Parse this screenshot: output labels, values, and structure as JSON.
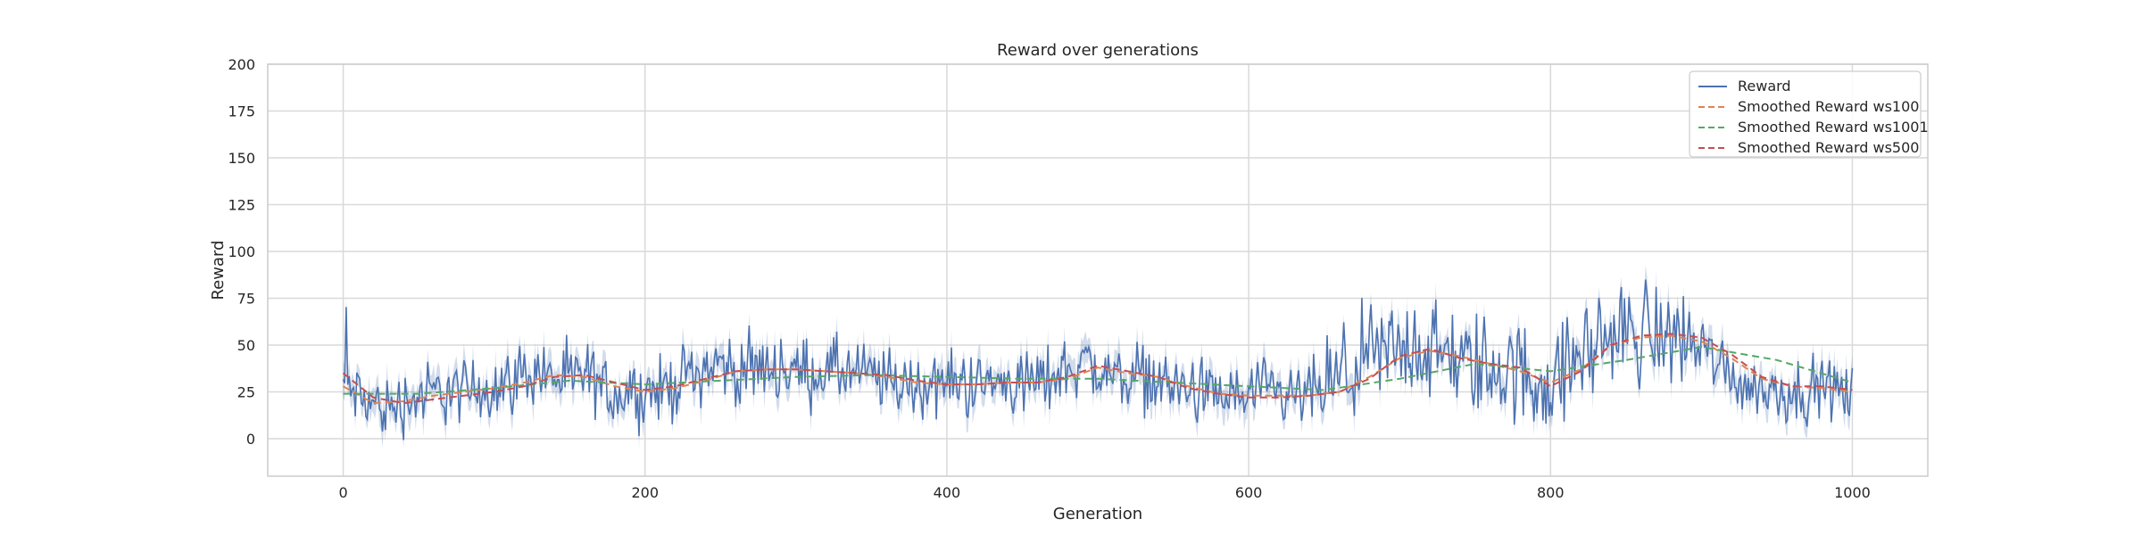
{
  "chart_data": {
    "type": "line",
    "title": "Reward over generations",
    "xlabel": "Generation",
    "ylabel": "Reward",
    "xlim": [
      -50,
      1050
    ],
    "ylim": [
      -20,
      200
    ],
    "xticks": [
      "0",
      "200",
      "400",
      "600",
      "800",
      "1000"
    ],
    "yticks": [
      "0",
      "25",
      "50",
      "75",
      "100",
      "125",
      "150",
      "175",
      "200"
    ],
    "grid": true,
    "legend_position": "top-right",
    "raw_series_note_shading": true,
    "series": [
      {
        "name": "Reward",
        "style": "solid",
        "color": "#4c72b0",
        "x": [
          0,
          10,
          20,
          30,
          40,
          50,
          60,
          70,
          80,
          90,
          100,
          110,
          120,
          130,
          140,
          150,
          160,
          170,
          180,
          190,
          200,
          210,
          220,
          230,
          240,
          250,
          260,
          270,
          280,
          290,
          300,
          310,
          320,
          330,
          340,
          350,
          360,
          370,
          380,
          390,
          400,
          410,
          420,
          430,
          440,
          450,
          460,
          470,
          480,
          490,
          500,
          510,
          520,
          530,
          540,
          550,
          560,
          570,
          580,
          590,
          600,
          610,
          620,
          630,
          640,
          650,
          660,
          670,
          680,
          690,
          700,
          710,
          720,
          730,
          740,
          750,
          760,
          770,
          780,
          790,
          800,
          810,
          820,
          830,
          840,
          850,
          860,
          870,
          880,
          890,
          900,
          910,
          920,
          930,
          940,
          950,
          960,
          970,
          980,
          990,
          1000
        ],
        "values": [
          30,
          22,
          18,
          16,
          20,
          22,
          24,
          26,
          24,
          27,
          28,
          30,
          35,
          36,
          33,
          30,
          34,
          28,
          24,
          26,
          25,
          25,
          30,
          34,
          38,
          40,
          36,
          37,
          38,
          38,
          36,
          35,
          36,
          36,
          35,
          33,
          31,
          29,
          28,
          29,
          30,
          30,
          29,
          29,
          30,
          30,
          30,
          33,
          38,
          42,
          36,
          33,
          35,
          33,
          30,
          28,
          26,
          24,
          22,
          22,
          23,
          24,
          22,
          21,
          24,
          26,
          30,
          38,
          42,
          44,
          48,
          50,
          46,
          44,
          40,
          40,
          38,
          36,
          34,
          32,
          30,
          35,
          45,
          52,
          55,
          56,
          57,
          56,
          55,
          54,
          50,
          42,
          35,
          28,
          27,
          26,
          25,
          26,
          27,
          26,
          22
        ]
      },
      {
        "name": "Smoothed Reward ws100",
        "style": "dashed",
        "color": "#dd8452",
        "x": [
          0,
          20,
          40,
          60,
          80,
          100,
          120,
          140,
          160,
          180,
          200,
          220,
          240,
          260,
          280,
          300,
          320,
          340,
          360,
          380,
          400,
          420,
          440,
          460,
          480,
          500,
          520,
          540,
          560,
          580,
          600,
          620,
          640,
          660,
          680,
          700,
          720,
          740,
          760,
          780,
          800,
          820,
          840,
          860,
          880,
          900,
          920,
          940,
          960,
          980,
          1000
        ],
        "values": [
          28,
          19,
          20,
          23,
          25,
          27,
          30,
          34,
          33,
          28,
          25,
          27,
          31,
          36,
          37,
          37,
          36,
          35,
          33,
          30,
          29,
          29,
          30,
          30,
          32,
          38,
          35,
          33,
          28,
          24,
          23,
          23,
          23,
          25,
          33,
          43,
          47,
          44,
          40,
          36,
          30,
          37,
          50,
          54,
          55,
          52,
          43,
          32,
          28,
          27,
          25
        ]
      },
      {
        "name": "Smoothed Reward ws1001",
        "style": "dashed",
        "color": "#55a868",
        "x": [
          0,
          50,
          100,
          150,
          200,
          250,
          300,
          350,
          400,
          450,
          500,
          550,
          600,
          650,
          700,
          750,
          800,
          850,
          900,
          950,
          1000
        ],
        "values": [
          24,
          24,
          27,
          31,
          29,
          31,
          33,
          34,
          33,
          32,
          32,
          30,
          28,
          26,
          32,
          40,
          36,
          42,
          49,
          42,
          30
        ]
      },
      {
        "name": "Smoothed Reward ws500",
        "style": "dashed",
        "color": "#c44e52",
        "x": [
          0,
          20,
          40,
          60,
          80,
          100,
          120,
          140,
          160,
          180,
          200,
          220,
          240,
          260,
          280,
          300,
          320,
          340,
          360,
          380,
          400,
          420,
          440,
          460,
          480,
          500,
          520,
          540,
          560,
          580,
          600,
          620,
          640,
          660,
          680,
          700,
          720,
          740,
          760,
          780,
          800,
          820,
          840,
          860,
          880,
          900,
          920,
          940,
          960,
          980,
          1000
        ],
        "values": [
          35,
          22,
          19,
          21,
          23,
          25,
          28,
          33,
          34,
          30,
          26,
          28,
          32,
          36,
          37,
          37,
          36,
          35,
          34,
          31,
          29,
          29,
          30,
          30,
          33,
          39,
          36,
          33,
          27,
          24,
          22,
          22,
          23,
          25,
          32,
          44,
          48,
          43,
          40,
          38,
          28,
          36,
          50,
          55,
          56,
          54,
          45,
          33,
          28,
          28,
          26
        ]
      }
    ]
  }
}
